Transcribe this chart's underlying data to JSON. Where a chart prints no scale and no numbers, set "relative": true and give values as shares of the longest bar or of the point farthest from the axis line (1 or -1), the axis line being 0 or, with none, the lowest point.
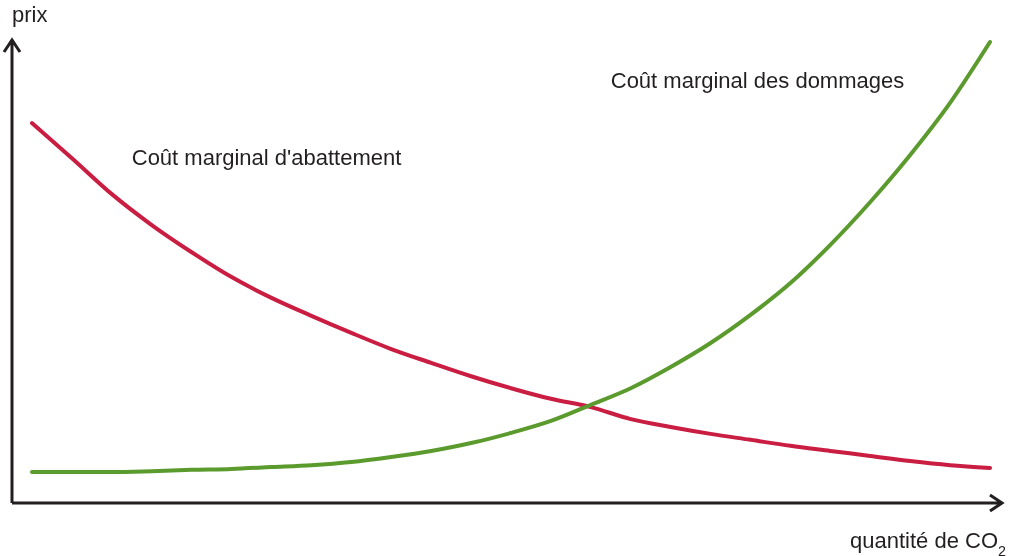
{
  "chart_data": {
    "type": "line",
    "relative": true,
    "xlabel": "quantité de CO$_{2}$",
    "ylabel": "prix",
    "categories": [
      null,
      null,
      null,
      null,
      null,
      null,
      null,
      null,
      null,
      null,
      null,
      null,
      null,
      null,
      null,
      null,
      null,
      null,
      null,
      null,
      null,
      null,
      null,
      null,
      null
    ],
    "series": [
      {
        "name": "Coût marginal d'abattement",
        "color": "#c91d42",
        "values": [
          0.824,
          0.748,
          0.67,
          0.603,
          0.544,
          0.49,
          0.445,
          0.406,
          0.369,
          0.334,
          0.304,
          0.275,
          0.249,
          0.226,
          0.208,
          0.182,
          0.165,
          0.15,
          0.137,
          0.124,
          0.113,
          0.102,
          0.091,
          0.082,
          0.076
        ]
      },
      {
        "name": "Coût marginal des dommages",
        "color": "#5b9a2c",
        "values": [
          0.067,
          0.067,
          0.067,
          0.069,
          0.072,
          0.074,
          0.078,
          0.082,
          0.089,
          0.1,
          0.113,
          0.13,
          0.152,
          0.178,
          0.213,
          0.249,
          0.295,
          0.347,
          0.408,
          0.477,
          0.56,
          0.653,
          0.755,
          0.868,
          1
        ]
      }
    ],
    "marker": "none",
    "line_style": "solid"
  }
}
